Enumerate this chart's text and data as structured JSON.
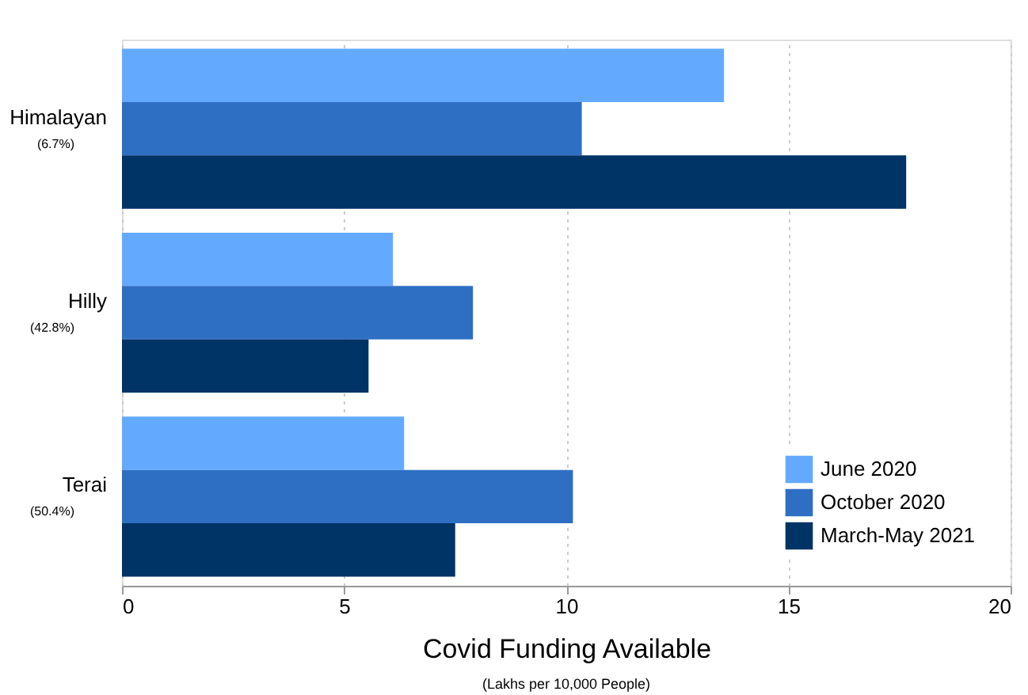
{
  "chart_data": {
    "type": "bar",
    "orientation": "horizontal",
    "categories": [
      "Himalayan\n(6.7%)",
      "Hilly\n(42.8%)",
      "Terai\n(50.4%)"
    ],
    "series": [
      {
        "name": "June 2020",
        "color": "#63aaff",
        "values": [
          13.55,
          6.1,
          6.35
        ]
      },
      {
        "name": "October 2020",
        "color": "#2e6fc4",
        "values": [
          10.35,
          7.9,
          10.15
        ]
      },
      {
        "name": "March-May 2021",
        "color": "#003366",
        "values": [
          17.65,
          5.55,
          7.5
        ]
      }
    ],
    "xlabel": "Covid Funding Available",
    "annotations": [
      "(Lakhs per 10,000 People)"
    ],
    "xlim": [
      0,
      20
    ],
    "xticks": [
      0,
      5,
      10,
      15,
      20
    ],
    "grid": "x",
    "legend": "bottom right"
  }
}
